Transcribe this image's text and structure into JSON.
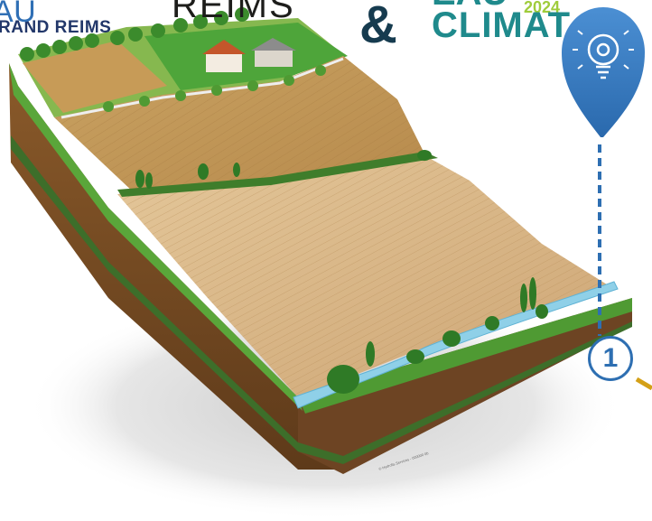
{
  "logos": {
    "agence_prefix": "AU",
    "agence_name": "RAND REIMS",
    "reims": "REIMS",
    "eau": "EAU",
    "ampersand": "&",
    "climat": "CLIMAT",
    "year": "2024"
  },
  "marker": {
    "number": "1",
    "icon": "gear-lightbulb-icon"
  },
  "watermark": "© Hydrofis Services - 000000 0b",
  "colors": {
    "marker_blue": "#2e6fb2",
    "path_gold": "#d4a017",
    "grass": "#5aa63a",
    "soil": "#c89a5a",
    "river": "#8fd0e8"
  }
}
